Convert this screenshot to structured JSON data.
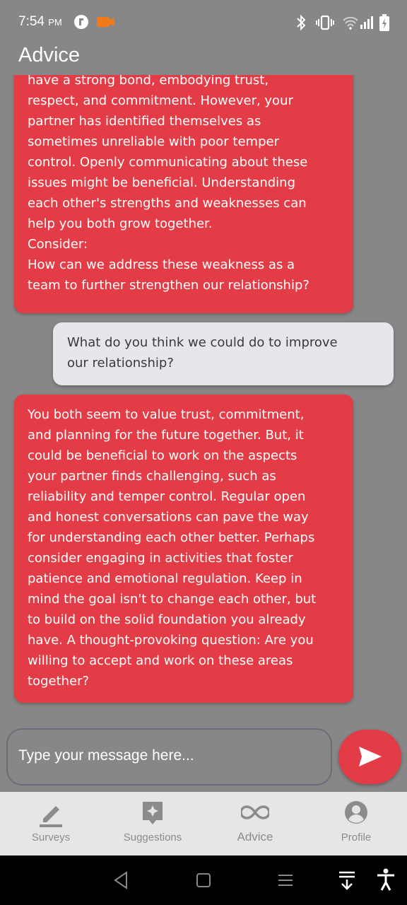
{
  "status_bar": {
    "time": "7:54",
    "ampm": "PM",
    "icons": [
      "app-badge-icon",
      "camera-icon",
      "bluetooth-icon",
      "vibrate-icon",
      "wifi-icon",
      "signal-icon",
      "battery-icon"
    ]
  },
  "app_bar": {
    "title": "Advice"
  },
  "messages": [
    {
      "sender": "bot",
      "text": "have a strong bond, embodying trust,\nrespect, and commitment. However, your\npartner has identified themselves as\nsometimes unreliable with poor temper\ncontrol. Openly communicating about these\nissues might be beneficial. Understanding\neach other's strengths and weaknesses can\nhelp you both grow together.\nConsider:\nHow can we address these weakness as a\nteam to further strengthen our relationship?"
    },
    {
      "sender": "user",
      "text": "What do you think we could do to improve\nour relationship?"
    },
    {
      "sender": "bot",
      "text": "You both seem to value trust, commitment,\nand planning for the future together. But, it\ncould be beneficial to work on the aspects\nyour partner finds challenging, such as\nreliability and temper control. Regular open\nand honest conversations can pave the way\nfor understanding each other better. Perhaps\nconsider engaging in activities that foster\npatience and emotional regulation. Keep in\nmind the goal isn't to change each other, but\nto build on the solid foundation you already\nhave. A thought-provoking question: Are you\nwilling to accept and work on these areas\ntogether?"
    }
  ],
  "composer": {
    "placeholder": "Type your message here...",
    "send_icon": "send-icon"
  },
  "bottom_nav": {
    "items": [
      {
        "label": "Surveys",
        "icon": "pencil-icon",
        "active": false
      },
      {
        "label": "Suggestions",
        "icon": "sparkle-icon",
        "active": false
      },
      {
        "label": "Advice",
        "icon": "infinity-icon",
        "active": true
      },
      {
        "label": "Profile",
        "icon": "account-icon",
        "active": false
      }
    ]
  },
  "system_nav": {
    "icons": [
      "back-icon",
      "home-icon",
      "recents-icon",
      "keyboard-hide-icon",
      "accessibility-icon"
    ]
  },
  "colors": {
    "background": "#878787",
    "bot_bubble": "#e43c46",
    "user_bubble": "#e6e6ec",
    "nav_bar": "#e6e6e6"
  }
}
